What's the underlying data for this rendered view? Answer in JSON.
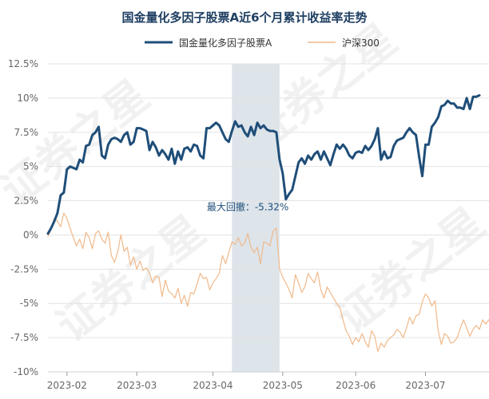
{
  "chart_data": {
    "type": "line",
    "title": "国金量化多因子股票A近6个月累计收益率走势",
    "watermark": "证券之星",
    "legend_position": "top",
    "grid": true,
    "y_unit": "%",
    "ylim": [
      -10,
      12.5
    ],
    "y_ticks": [
      12.5,
      10,
      7.5,
      5,
      2.5,
      0,
      -2.5,
      -5,
      -7.5,
      -10
    ],
    "y_tick_labels": [
      "12.5%",
      "10%",
      "7.5%",
      "5%",
      "2.5%",
      "0%",
      "-2.5%",
      "-5%",
      "-7.5%",
      "-10%"
    ],
    "x_tick_labels": [
      "2023-02",
      "2023-03",
      "2023-04",
      "2023-05",
      "2023-06",
      "2023-07"
    ],
    "drawdown": {
      "label": "最大回撤：-5.32%",
      "start_index": 58,
      "end_index": 73
    },
    "series": [
      {
        "name": "国金量化多因子股票A",
        "color": "#1f4e79",
        "values": [
          0.1,
          0.5,
          1.0,
          1.6,
          2.9,
          3.1,
          4.8,
          5.0,
          4.9,
          4.8,
          5.5,
          5.3,
          6.5,
          6.6,
          7.3,
          7.5,
          7.9,
          5.8,
          5.6,
          6.6,
          7.0,
          7.1,
          7.0,
          6.8,
          7.3,
          7.5,
          6.6,
          6.8,
          7.8,
          7.8,
          7.7,
          7.6,
          6.2,
          6.8,
          6.4,
          5.8,
          6.2,
          5.9,
          5.5,
          6.3,
          5.2,
          6.1,
          5.5,
          6.3,
          6.4,
          6.1,
          6.6,
          6.5,
          5.8,
          5.6,
          7.8,
          7.8,
          8.0,
          8.2,
          8.0,
          7.5,
          7.0,
          6.8,
          7.6,
          8.3,
          7.9,
          8.0,
          7.5,
          7.2,
          7.9,
          7.3,
          8.2,
          7.8,
          8.0,
          7.7,
          7.6,
          7.6,
          7.5,
          5.5,
          4.5,
          2.6,
          3.0,
          3.3,
          4.3,
          5.3,
          5.6,
          5.2,
          5.8,
          5.5,
          5.9,
          6.1,
          5.5,
          6.1,
          5.6,
          5.1,
          5.9,
          6.6,
          6.3,
          6.6,
          6.3,
          5.8,
          5.6,
          6.0,
          6.1,
          6.0,
          6.5,
          6.2,
          6.5,
          7.0,
          7.8,
          5.5,
          6.1,
          5.6,
          5.7,
          6.5,
          6.9,
          7.0,
          7.1,
          7.5,
          7.8,
          7.5,
          7.3,
          5.7,
          4.3,
          6.6,
          6.6,
          7.9,
          8.2,
          8.6,
          9.4,
          9.5,
          9.8,
          9.6,
          9.6,
          9.3,
          9.3,
          9.2,
          10.0,
          9.2,
          10.1,
          10.1,
          10.2
        ]
      },
      {
        "name": "沪深300",
        "color": "#f0b98a",
        "values": [
          -0.1,
          0.4,
          1.2,
          1.0,
          0.6,
          1.6,
          1.2,
          0.5,
          -0.2,
          -0.8,
          -0.3,
          -1.0,
          0.2,
          -0.2,
          -1.0,
          0.1,
          0.3,
          -0.3,
          -0.6,
          0.2,
          -1.5,
          -2.0,
          -1.2,
          0.0,
          -1.2,
          -0.9,
          -2.2,
          -1.6,
          -2.5,
          -1.9,
          -2.6,
          -2.4,
          -2.8,
          -3.5,
          -3.0,
          -3.1,
          -4.5,
          -3.3,
          -4.1,
          -4.3,
          -4.6,
          -3.9,
          -5.0,
          -4.4,
          -5.2,
          -4.2,
          -4.3,
          -3.6,
          -2.8,
          -3.2,
          -3.1,
          -4.0,
          -3.5,
          -3.2,
          -2.8,
          -1.5,
          -2.1,
          -1.3,
          -0.5,
          -0.7,
          -0.2,
          -0.8,
          -0.6,
          0.1,
          -0.9,
          -1.3,
          -0.9,
          -2.1,
          -0.5,
          -0.6,
          -0.8,
          0.3,
          0.5,
          -2.5,
          -3.1,
          -3.5,
          -4.0,
          -4.6,
          -2.9,
          -3.5,
          -4.2,
          -3.8,
          -2.8,
          -3.2,
          -3.5,
          -2.7,
          -4.0,
          -4.6,
          -3.8,
          -4.2,
          -4.6,
          -5.0,
          -5.3,
          -6.2,
          -7.0,
          -7.4,
          -8.0,
          -7.5,
          -7.8,
          -7.2,
          -7.8,
          -8.2,
          -7.0,
          -7.4,
          -8.5,
          -7.9,
          -8.2,
          -7.7,
          -7.5,
          -7.3,
          -6.9,
          -7.1,
          -7.5,
          -6.8,
          -6.0,
          -6.5,
          -5.9,
          -5.8,
          -4.9,
          -4.3,
          -4.6,
          -5.2,
          -4.8,
          -7.0,
          -8.0,
          -7.2,
          -7.4,
          -7.9,
          -7.8,
          -7.5,
          -6.8,
          -6.2,
          -6.8,
          -7.4,
          -6.9,
          -6.6,
          -6.9,
          -6.2,
          -6.5,
          -6.2,
          -5.8,
          -6.0,
          -6.1,
          -7.1
        ]
      }
    ]
  }
}
